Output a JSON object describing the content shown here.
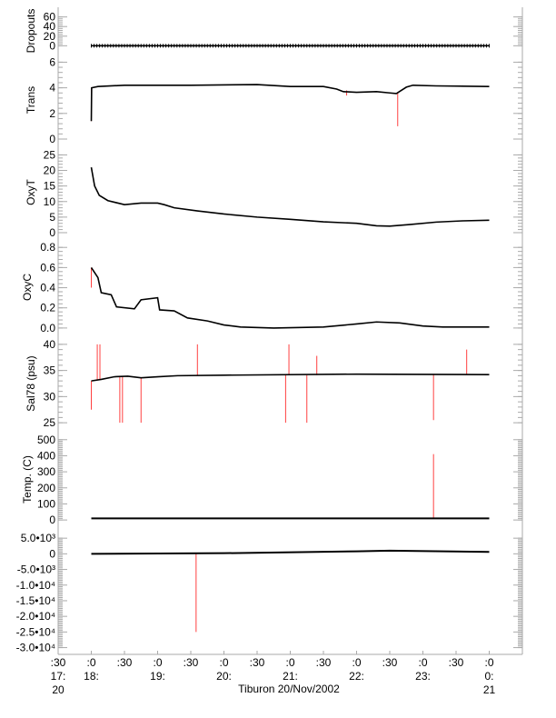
{
  "chart_data": {
    "type": "line",
    "title": "",
    "xlabel": "Tiburon 20/Nov/2002",
    "xlim_hours": [
      17.5,
      24.5
    ],
    "x_ticks": [
      {
        "h": 17.5,
        "l1": ":30",
        "l2": "17:",
        "l3": "20"
      },
      {
        "h": 18,
        "l1": ":0",
        "l2": "18:",
        "l3": ""
      },
      {
        "h": 18.5,
        "l1": ":30",
        "l2": "",
        "l3": ""
      },
      {
        "h": 19,
        "l1": ":0",
        "l2": "19:",
        "l3": ""
      },
      {
        "h": 19.5,
        "l1": ":30",
        "l2": "",
        "l3": ""
      },
      {
        "h": 20,
        "l1": ":0",
        "l2": "20:",
        "l3": ""
      },
      {
        "h": 20.5,
        "l1": ":30",
        "l2": "",
        "l3": ""
      },
      {
        "h": 21,
        "l1": ":0",
        "l2": "21:",
        "l3": ""
      },
      {
        "h": 21.5,
        "l1": ":30",
        "l2": "",
        "l3": ""
      },
      {
        "h": 22,
        "l1": ":0",
        "l2": "22:",
        "l3": ""
      },
      {
        "h": 22.5,
        "l1": ":30",
        "l2": "",
        "l3": ""
      },
      {
        "h": 23,
        "l1": ":0",
        "l2": "23:",
        "l3": ""
      },
      {
        "h": 23.5,
        "l1": ":30",
        "l2": "",
        "l3": ""
      },
      {
        "h": 24,
        "l1": ":0",
        "l2": "0:",
        "l3": "21"
      }
    ],
    "panels": [
      {
        "name": "Dropouts",
        "ylim": [
          -5,
          65
        ],
        "ticks": [
          0,
          20,
          40,
          60
        ],
        "tick_labels": [
          "0",
          "20",
          "40",
          "60"
        ],
        "series": [
          [
            18,
            0
          ],
          [
            24,
            0
          ]
        ],
        "spikes": [],
        "marker_ticks": true
      },
      {
        "name": "Trans",
        "ylim": [
          0,
          6.1
        ],
        "ticks": [
          0,
          2,
          4,
          6
        ],
        "tick_labels": [
          "0",
          "2",
          "4",
          "6"
        ],
        "series": [
          [
            18,
            1.4
          ],
          [
            18.005,
            4.0
          ],
          [
            18.1,
            4.1
          ],
          [
            18.5,
            4.2
          ],
          [
            19.5,
            4.2
          ],
          [
            20.5,
            4.25
          ],
          [
            21.0,
            4.1
          ],
          [
            21.5,
            4.1
          ],
          [
            21.7,
            3.9
          ],
          [
            21.8,
            3.7
          ],
          [
            22.0,
            3.65
          ],
          [
            22.3,
            3.7
          ],
          [
            22.5,
            3.6
          ],
          [
            22.6,
            3.55
          ],
          [
            22.75,
            4.05
          ],
          [
            22.85,
            4.2
          ],
          [
            23.2,
            4.15
          ],
          [
            24,
            4.1
          ]
        ],
        "spikes": [
          [
            18,
            4.0,
            1.4
          ],
          [
            22.62,
            3.6,
            1.0
          ],
          [
            21.85,
            3.8,
            3.4
          ]
        ]
      },
      {
        "name": "OxyT",
        "ylim": [
          0,
          26
        ],
        "ticks": [
          0,
          5,
          10,
          15,
          20,
          25
        ],
        "tick_labels": [
          "0",
          "5",
          "10",
          "15",
          "20",
          "25"
        ],
        "series": [
          [
            18,
            21
          ],
          [
            18.05,
            15
          ],
          [
            18.12,
            12
          ],
          [
            18.25,
            10.3
          ],
          [
            18.5,
            9
          ],
          [
            18.75,
            9.5
          ],
          [
            19.0,
            9.5
          ],
          [
            19.1,
            9.0
          ],
          [
            19.25,
            8.0
          ],
          [
            19.6,
            7.0
          ],
          [
            20.0,
            6.0
          ],
          [
            20.5,
            5.0
          ],
          [
            21.0,
            4.3
          ],
          [
            21.5,
            3.5
          ],
          [
            22.0,
            3.0
          ],
          [
            22.3,
            2.2
          ],
          [
            22.5,
            2.1
          ],
          [
            22.8,
            2.6
          ],
          [
            23.2,
            3.4
          ],
          [
            23.6,
            3.8
          ],
          [
            24,
            4.0
          ]
        ],
        "spikes": []
      },
      {
        "name": "OxyC",
        "ylim": [
          -0.01,
          0.82
        ],
        "ticks": [
          0,
          0.2,
          0.4,
          0.6,
          0.8
        ],
        "tick_labels": [
          "0.0",
          "0.2",
          "0.4",
          "0.6",
          "0.8"
        ],
        "series": [
          [
            18,
            0.6
          ],
          [
            18.05,
            0.55
          ],
          [
            18.1,
            0.5
          ],
          [
            18.15,
            0.35
          ],
          [
            18.3,
            0.33
          ],
          [
            18.38,
            0.21
          ],
          [
            18.65,
            0.19
          ],
          [
            18.75,
            0.28
          ],
          [
            19.0,
            0.3
          ],
          [
            19.03,
            0.18
          ],
          [
            19.25,
            0.17
          ],
          [
            19.45,
            0.1
          ],
          [
            19.75,
            0.07
          ],
          [
            20.0,
            0.03
          ],
          [
            20.25,
            0.01
          ],
          [
            20.75,
            0.0
          ],
          [
            21.5,
            0.01
          ],
          [
            22.0,
            0.04
          ],
          [
            22.3,
            0.06
          ],
          [
            22.65,
            0.05
          ],
          [
            23.0,
            0.02
          ],
          [
            23.3,
            0.01
          ],
          [
            24,
            0.01
          ]
        ],
        "spikes": [
          [
            18,
            0.6,
            0.4
          ]
        ]
      },
      {
        "name": "Sal78 (psu)",
        "ylim": [
          24.5,
          40.5
        ],
        "ticks": [
          25,
          30,
          35,
          40
        ],
        "tick_labels": [
          "25",
          "30",
          "35",
          "40"
        ],
        "series": [
          [
            18,
            33
          ],
          [
            18.15,
            33.3
          ],
          [
            18.35,
            33.8
          ],
          [
            18.55,
            33.9
          ],
          [
            18.75,
            33.6
          ],
          [
            19.0,
            33.8
          ],
          [
            19.3,
            34.0
          ],
          [
            20.0,
            34.1
          ],
          [
            22.0,
            34.3
          ],
          [
            24,
            34.2
          ]
        ],
        "spikes": [
          [
            18,
            33,
            27.5
          ],
          [
            18.09,
            33.2,
            40
          ],
          [
            18.13,
            33.2,
            40
          ],
          [
            18.43,
            33.8,
            25
          ],
          [
            18.47,
            33.8,
            25
          ],
          [
            18.75,
            33.6,
            25
          ],
          [
            19.6,
            34.0,
            40
          ],
          [
            20.93,
            34.1,
            25
          ],
          [
            21.25,
            34.1,
            25
          ],
          [
            20.98,
            34.1,
            40
          ],
          [
            21.4,
            34.1,
            37.8
          ],
          [
            23.16,
            34.2,
            25.5
          ],
          [
            23.66,
            34.2,
            39
          ]
        ]
      },
      {
        "name": "Temp. (C)",
        "ylim": [
          -5,
          510
        ],
        "ticks": [
          0,
          100,
          200,
          300,
          400,
          500
        ],
        "tick_labels": [
          "0",
          "100",
          "200",
          "300",
          "400",
          "500"
        ],
        "series": [
          [
            18,
            10
          ],
          [
            24,
            10
          ]
        ],
        "spikes": [
          [
            23.16,
            10,
            410
          ]
        ]
      },
      {
        "name": "",
        "ylim": [
          -31000,
          6500
        ],
        "ticks": [
          5000,
          0,
          -5000,
          -10000,
          -15000,
          -20000,
          -25000,
          -30000
        ],
        "tick_labels": [
          "5.0•10³",
          "0",
          "-5.0•10³",
          "-1.0•10⁴",
          "-1.5•10⁴",
          "-2.0•10⁴",
          "-2.5•10⁴",
          "-3.0•10⁴"
        ],
        "series": [
          [
            18,
            0
          ],
          [
            20,
            200
          ],
          [
            22,
            800
          ],
          [
            22.5,
            1000
          ],
          [
            24,
            600
          ]
        ],
        "spikes": [
          [
            19.58,
            0,
            -25000
          ]
        ]
      }
    ],
    "colors": {
      "line": "#000000",
      "spike": "#ff4040",
      "axis": "#aaaaaa"
    }
  }
}
